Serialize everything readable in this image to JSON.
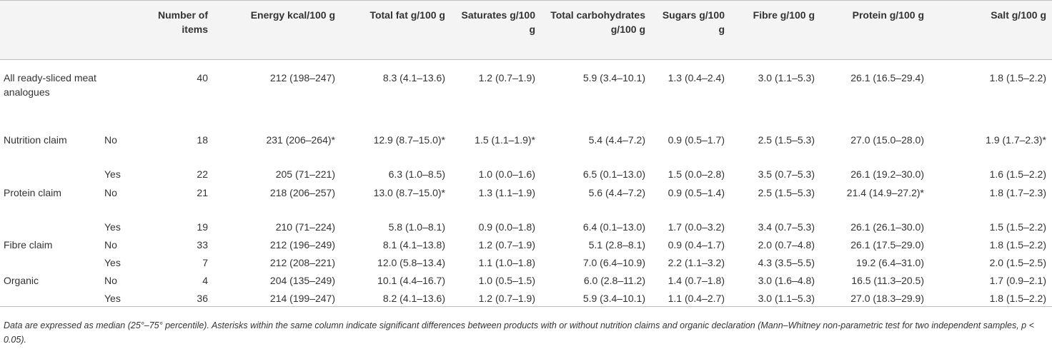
{
  "headers": [
    "",
    "",
    "Number of items",
    "Energy kcal/100 g",
    "Total fat g/100 g",
    "Saturates g/100 g",
    "Total carbohydrates g/100 g",
    "Sugars g/100 g",
    "Fibre g/100 g",
    "Protein g/100 g",
    "Salt g/100 g"
  ],
  "rows": [
    {
      "group": "All ready-sliced meat analogues",
      "sub": "",
      "cells": [
        "40",
        "212 (198–247)",
        "8.3 (4.1–13.6)",
        "1.2 (0.7–1.9)",
        "5.9 (3.4–10.1)",
        "1.3 (0.4–2.4)",
        "3.0 (1.1–5.3)",
        "26.1 (16.5–29.4)",
        "1.8 (1.5–2.2)"
      ]
    },
    {
      "group": "Nutrition claim",
      "sub": "No",
      "cells": [
        "18",
        "231 (206–264)*",
        "12.9 (8.7–15.0)*",
        "1.5 (1.1–1.9)*",
        "5.4 (4.4–7.2)",
        "0.9 (0.5–1.7)",
        "2.5 (1.5–5.3)",
        "27.0 (15.0–28.0)",
        "1.9 (1.7–2.3)*"
      ]
    },
    {
      "group": "",
      "sub": "Yes",
      "cells": [
        "22",
        "205 (71–221)",
        "6.3 (1.0–8.5)",
        "1.0 (0.0–1.6)",
        "6.5 (0.1–13.0)",
        "1.5 (0.0–2.8)",
        "3.5 (0.7–5.3)",
        "26.1 (19.2–30.0)",
        "1.6 (1.5–2.2)"
      ]
    },
    {
      "group": "Protein claim",
      "sub": "No",
      "cells": [
        "21",
        "218 (206–257)",
        "13.0 (8.7–15.0)*",
        "1.3 (1.1–1.9)",
        "5.6 (4.4–7.2)",
        "0.9 (0.5–1.4)",
        "2.5 (1.5–5.3)",
        "21.4 (14.9–27.2)*",
        "1.8 (1.7–2.3)"
      ]
    },
    {
      "group": "",
      "sub": "Yes",
      "cells": [
        "19",
        "210 (71–224)",
        "5.8 (1.0–8.1)",
        "0.9 (0.0–1.8)",
        "6.4 (0.1–13.0)",
        "1.7 (0.0–3.2)",
        "3.4 (0.7–5.3)",
        "26.1 (26.1–30.0)",
        "1.5 (1.5–2.2)"
      ]
    },
    {
      "group": "Fibre claim",
      "sub": "No",
      "cells": [
        "33",
        "212 (196–249)",
        "8.1 (4.1–13.8)",
        "1.2 (0.7–1.9)",
        "5.1 (2.8–8.1)",
        "0.9 (0.4–1.7)",
        "2.0 (0.7–4.8)",
        "26.1 (17.5–29.0)",
        "1.8 (1.5–2.2)"
      ]
    },
    {
      "group": "",
      "sub": "Yes",
      "cells": [
        "7",
        "212 (208–221)",
        "12.0 (5.8–13.4)",
        "1.1 (1.0–1.8)",
        "7.0 (6.4–10.9)",
        "2.2 (1.1–3.2)",
        "4.3 (3.5–5.5)",
        "19.2 (6.4–31.0)",
        "2.0 (1.5–2.5)"
      ]
    },
    {
      "group": "Organic",
      "sub": "No",
      "cells": [
        "4",
        "204 (135–249)",
        "10.1 (4.4–16.7)",
        "1.0 (0.5–1.5)",
        "6.0 (2.8–11.2)",
        "1.4 (0.7–1.8)",
        "3.0 (1.6–4.8)",
        "16.5 (11.3–20.5)",
        "1.7 (0.9–2.1)"
      ]
    },
    {
      "group": "",
      "sub": "Yes",
      "cells": [
        "36",
        "214 (199–247)",
        "8.2 (4.1–13.6)",
        "1.2 (0.7–1.9)",
        "5.9 (3.4–10.1)",
        "1.1 (0.4–2.7)",
        "3.0 (1.1–5.3)",
        "27.0 (18.3–29.9)",
        "1.8 (1.5–2.2)"
      ]
    }
  ],
  "footnote": "Data are expressed as median (25°–75° percentile). Asterisks within the same column indicate significant differences between products with or without nutrition claims and organic declaration (Mann–Whitney non-parametric test for two independent samples, p < 0.05)."
}
